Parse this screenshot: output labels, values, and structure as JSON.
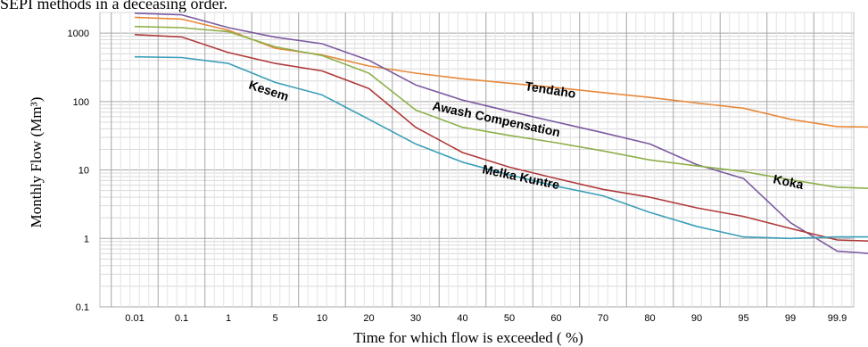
{
  "caption_fragment": "SEPI methods in a deceasing order.",
  "chart_data": {
    "type": "line",
    "xlabel": "Time for which flow is exceeded ( %)",
    "ylabel": "Monthly Flow (Mm³)",
    "yscale": "log",
    "ylim": [
      0.1,
      2000
    ],
    "grid": true,
    "x": [
      "0.01",
      "0.1",
      "1",
      "5",
      "10",
      "20",
      "30",
      "40",
      "50",
      "60",
      "70",
      "80",
      "90",
      "95",
      "99",
      "99.9",
      "99.99"
    ],
    "yticks": [
      "0.1",
      "1",
      "10",
      "100",
      "1000"
    ],
    "series": [
      {
        "name": "Tendaho",
        "color": "#E8883A",
        "values": [
          1700,
          1600,
          1100,
          600,
          480,
          330,
          260,
          215,
          185,
          160,
          135,
          115,
          95,
          80,
          55,
          43,
          42
        ]
      },
      {
        "name": "Awash Compensation",
        "color": "#7B5AA0",
        "values": [
          1950,
          1850,
          1200,
          870,
          700,
          400,
          175,
          105,
          72,
          50,
          35,
          24,
          12,
          7.5,
          1.7,
          0.65,
          0.58
        ]
      },
      {
        "name": "Koka",
        "color": "#8DB04A",
        "values": [
          1250,
          1200,
          1050,
          630,
          470,
          260,
          75,
          42,
          32,
          25,
          19,
          14,
          11.5,
          9.5,
          7.2,
          5.6,
          5.3
        ]
      },
      {
        "name": "Melka Kuntre",
        "color": "#B03A3A",
        "values": [
          950,
          880,
          520,
          360,
          280,
          155,
          42,
          18,
          11,
          7.5,
          5.2,
          4.0,
          2.8,
          2.1,
          1.4,
          0.95,
          0.9
        ]
      },
      {
        "name": "Kesem",
        "color": "#3A9FB8",
        "values": [
          450,
          440,
          360,
          190,
          125,
          55,
          24,
          13,
          8.5,
          5.8,
          4.2,
          2.4,
          1.5,
          1.05,
          1.0,
          1.05,
          1.05
        ]
      }
    ]
  }
}
